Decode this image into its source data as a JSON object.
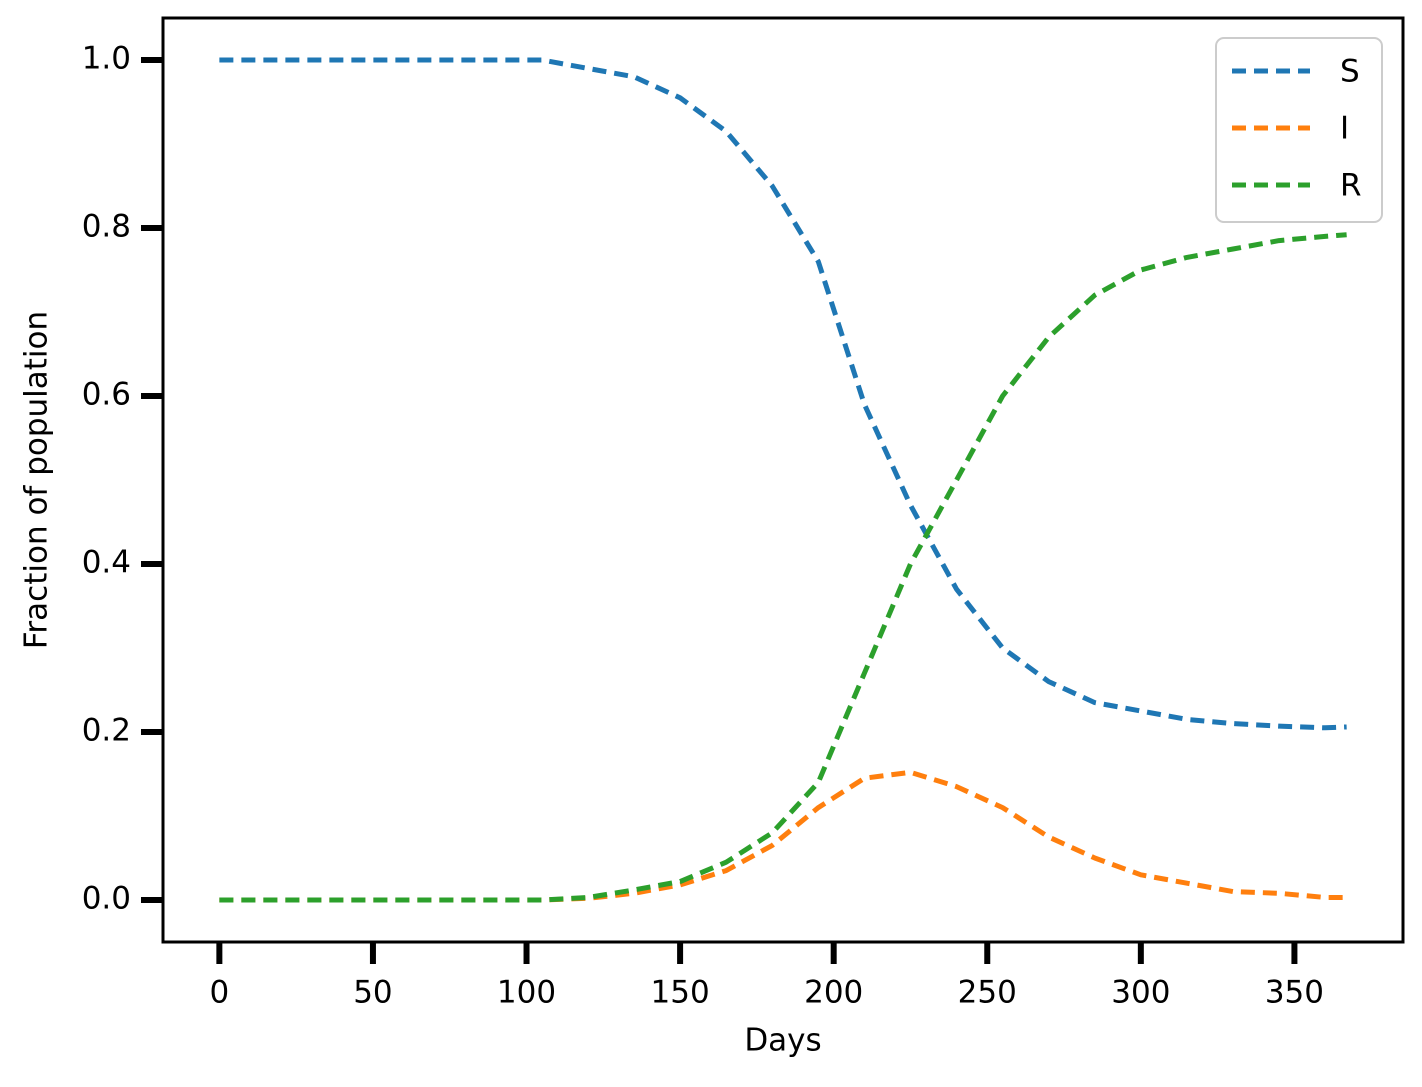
{
  "chart_data": {
    "type": "line",
    "x_label": "Days",
    "y_label": "Fraction of population",
    "x": [
      0,
      15,
      30,
      45,
      60,
      75,
      90,
      105,
      120,
      135,
      150,
      165,
      180,
      195,
      210,
      225,
      240,
      255,
      270,
      285,
      300,
      315,
      330,
      345,
      360,
      367
    ],
    "series": [
      {
        "name": "S",
        "color": "#1f77b4",
        "values": [
          1,
          1,
          1,
          1,
          1,
          1,
          1,
          1,
          0.99,
          0.98,
          0.955,
          0.915,
          0.85,
          0.76,
          0.59,
          0.47,
          0.37,
          0.3,
          0.26,
          0.235,
          0.225,
          0.215,
          0.21,
          0.207,
          0.205,
          0.206
        ]
      },
      {
        "name": "I",
        "color": "#ff7f0e",
        "values": [
          0,
          0,
          0,
          0,
          0,
          0,
          0,
          0,
          0.002,
          0.008,
          0.018,
          0.035,
          0.065,
          0.11,
          0.145,
          0.152,
          0.135,
          0.11,
          0.075,
          0.05,
          0.03,
          0.02,
          0.01,
          0.008,
          0.003,
          0.003
        ]
      },
      {
        "name": "R",
        "color": "#2ca02c",
        "values": [
          0,
          0,
          0,
          0,
          0,
          0,
          0,
          0,
          0.003,
          0.012,
          0.022,
          0.045,
          0.08,
          0.14,
          0.27,
          0.4,
          0.5,
          0.6,
          0.67,
          0.72,
          0.75,
          0.765,
          0.775,
          0.785,
          0.79,
          0.792
        ]
      }
    ],
    "xlim": [
      -18.35,
      385.35
    ],
    "ylim": [
      -0.05,
      1.05
    ],
    "xticks": [
      0,
      50,
      100,
      150,
      200,
      250,
      300,
      350
    ],
    "yticks": [
      {
        "value": 0,
        "label": "0.0"
      },
      {
        "value": 0.2,
        "label": "0.2"
      },
      {
        "value": 0.4,
        "label": "0.4"
      },
      {
        "value": 0.6,
        "label": "0.6"
      },
      {
        "value": 0.8,
        "label": "0.8"
      },
      {
        "value": 1,
        "label": "1.0"
      }
    ],
    "line_style": "dashed",
    "legend": "upper right"
  }
}
